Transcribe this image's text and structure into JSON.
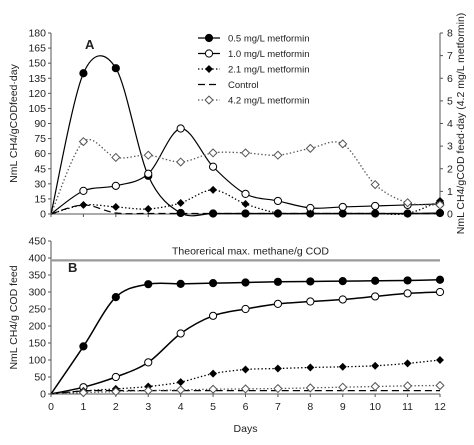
{
  "chart_data": [
    {
      "panel": "A",
      "type": "line",
      "x": [
        0,
        1,
        2,
        3,
        4,
        5,
        6,
        7,
        8,
        9,
        10,
        11,
        12
      ],
      "xlim": [
        0,
        12
      ],
      "ylim": [
        0,
        180
      ],
      "yticks": [
        0,
        15,
        30,
        45,
        60,
        75,
        90,
        105,
        120,
        135,
        150,
        165,
        180
      ],
      "ylabel": "NmL CH4/gCODfeed·day",
      "y2lim": [
        0,
        8
      ],
      "y2ticks": [
        0,
        1,
        2,
        3,
        4,
        5,
        6,
        7,
        8
      ],
      "y2label": "NmL CH4/gCOD feed·day (4.2 mg/L metformin)",
      "legend_position": "top-right",
      "series": [
        {
          "name": "0.5 mg/L metformin",
          "axis": "left",
          "marker": "filled-circle",
          "line": "solid",
          "color": "#000000",
          "values": [
            0,
            140,
            145,
            38,
            1,
            0.5,
            0.5,
            0.5,
            0.5,
            0.5,
            0.5,
            0.5,
            1
          ]
        },
        {
          "name": "1.0 mg/L metformin",
          "axis": "left",
          "marker": "open-circle",
          "line": "solid",
          "color": "#000000",
          "values": [
            0,
            23,
            28,
            40,
            85,
            47,
            20,
            13,
            6,
            7,
            8,
            9,
            10
          ]
        },
        {
          "name": "2.1 mg/L metformin",
          "axis": "left",
          "marker": "filled-diamond",
          "line": "dotted",
          "color": "#000000",
          "values": [
            0,
            9,
            7,
            5,
            11,
            24,
            10,
            1,
            0.5,
            0.5,
            0.5,
            0.5,
            13
          ]
        },
        {
          "name": "Control",
          "axis": "left",
          "marker": "none",
          "line": "dashed",
          "color": "#000000",
          "values": [
            0,
            9,
            1,
            0.5,
            0.5,
            0.5,
            0.5,
            0.5,
            0.5,
            0.5,
            0.5,
            0.5,
            0.5
          ]
        },
        {
          "name": "4.2 mg/L metformin",
          "axis": "right",
          "marker": "open-diamond",
          "line": "dotted",
          "color": "#555555",
          "values": [
            0,
            3.2,
            2.5,
            2.6,
            2.3,
            2.7,
            2.7,
            2.6,
            2.9,
            3.1,
            1.3,
            0.5,
            0.4
          ]
        }
      ]
    },
    {
      "panel": "B",
      "type": "line",
      "x": [
        0,
        1,
        2,
        3,
        4,
        5,
        6,
        7,
        8,
        9,
        10,
        11,
        12
      ],
      "xlim": [
        0,
        12
      ],
      "xlabel": "Days",
      "ylim": [
        0,
        450
      ],
      "yticks": [
        0,
        50,
        100,
        150,
        200,
        250,
        300,
        350,
        400,
        450
      ],
      "ylabel": "NmL CH4/g COD feed",
      "reference_line": {
        "value": 393,
        "label": "Theorerical max. methane/g COD",
        "color": "#9a9a9a"
      },
      "series": [
        {
          "name": "0.5 mg/L metformin",
          "marker": "filled-circle",
          "line": "solid",
          "color": "#000000",
          "values": [
            0,
            140,
            285,
            323,
            324,
            326,
            328,
            330,
            331,
            332,
            333,
            334,
            336
          ]
        },
        {
          "name": "1.0 mg/L metformin",
          "marker": "open-circle",
          "line": "solid",
          "color": "#000000",
          "values": [
            0,
            20,
            50,
            93,
            178,
            230,
            250,
            265,
            272,
            278,
            287,
            296,
            300
          ]
        },
        {
          "name": "2.1 mg/L metformin",
          "marker": "filled-diamond",
          "line": "dotted",
          "color": "#000000",
          "values": [
            0,
            9,
            15,
            22,
            35,
            60,
            72,
            75,
            78,
            80,
            83,
            90,
            100
          ]
        },
        {
          "name": "Control",
          "marker": "none",
          "line": "dashed",
          "color": "#000000",
          "values": [
            0,
            9,
            10,
            10,
            10,
            10,
            10,
            10,
            10,
            10,
            10,
            10,
            10
          ]
        },
        {
          "name": "4.2 mg/L metformin",
          "marker": "open-diamond",
          "line": "dotted",
          "color": "#555555",
          "values": [
            0,
            4,
            7,
            10,
            12,
            14,
            15,
            16,
            18,
            20,
            22,
            24,
            25
          ]
        }
      ]
    }
  ]
}
